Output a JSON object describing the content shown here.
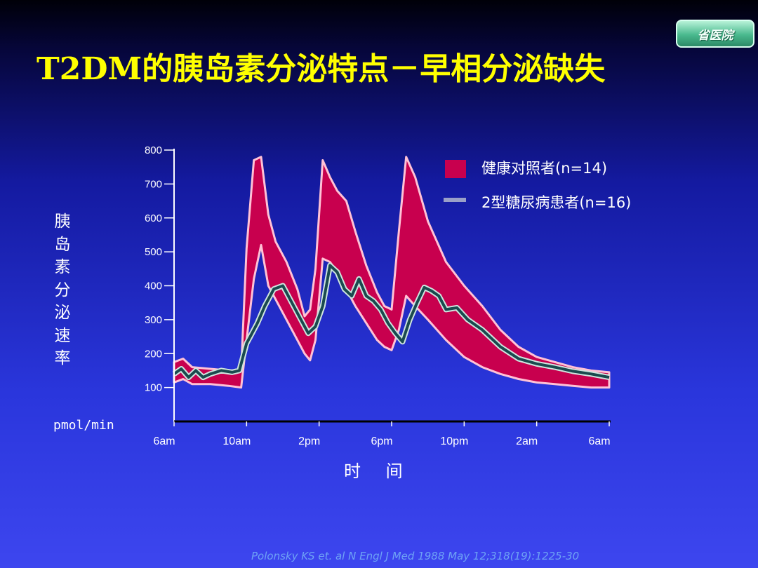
{
  "badge": "省医院",
  "title": "T2DM的胰岛素分泌特点－早相分泌缺失",
  "citation": "Polonsky KS et. al N Engl J Med 1988 May 12;318(19):1225-30",
  "colors": {
    "healthy": "#c8004e",
    "healthy_edge": "#ffc2d6",
    "diabetic": "#1a4a4e",
    "diabetic_halo": "#cfe5df",
    "title": "#ffff00"
  },
  "chart_data": {
    "type": "area",
    "ylabel": "胰岛素分泌速率",
    "yunit": "pmol/min",
    "xlabel": "时 间",
    "ylim": [
      0,
      800
    ],
    "yticks": [
      100,
      200,
      300,
      400,
      500,
      600,
      700,
      800
    ],
    "xlim": [
      6,
      30
    ],
    "xticks": [
      "6am",
      "10am",
      "2pm",
      "6pm",
      "10pm",
      "2am",
      "6am"
    ],
    "legend_position": "top-right",
    "series": [
      {
        "name": "健康对照者(n=14)",
        "style": "band",
        "x": [
          6.0,
          6.5,
          7.0,
          8.0,
          9.0,
          9.7,
          10.0,
          10.4,
          10.8,
          11.2,
          11.6,
          12.2,
          12.8,
          13.2,
          13.5,
          13.8,
          14.2,
          14.6,
          15.0,
          15.5,
          16.0,
          16.6,
          17.2,
          17.6,
          18.0,
          18.4,
          18.8,
          19.3,
          20.0,
          21.0,
          22.0,
          23.0,
          24.0,
          25.0,
          26.0,
          27.0,
          28.0,
          29.0,
          30.0
        ],
        "upper": [
          175,
          185,
          160,
          155,
          150,
          150,
          510,
          770,
          780,
          610,
          530,
          470,
          390,
          310,
          330,
          450,
          770,
          720,
          680,
          650,
          560,
          460,
          380,
          340,
          330,
          560,
          780,
          720,
          590,
          470,
          400,
          340,
          270,
          220,
          190,
          175,
          160,
          150,
          145
        ],
        "lower": [
          115,
          125,
          110,
          110,
          105,
          100,
          240,
          420,
          520,
          400,
          360,
          300,
          240,
          200,
          180,
          240,
          480,
          470,
          440,
          390,
          340,
          290,
          240,
          220,
          210,
          270,
          370,
          340,
          300,
          240,
          190,
          160,
          140,
          125,
          115,
          110,
          105,
          100,
          100
        ]
      },
      {
        "name": "2型糖尿病患者(n=16)",
        "style": "line",
        "x": [
          6.0,
          6.4,
          6.8,
          7.2,
          7.6,
          8.0,
          8.6,
          9.2,
          9.6,
          10.0,
          10.2,
          10.6,
          11.0,
          11.5,
          12.0,
          12.5,
          13.0,
          13.4,
          13.8,
          14.2,
          14.6,
          15.0,
          15.4,
          15.8,
          16.2,
          16.6,
          17.0,
          17.4,
          17.8,
          18.2,
          18.6,
          19.0,
          19.4,
          19.8,
          20.2,
          20.6,
          21.0,
          21.6,
          22.2,
          23.0,
          24.0,
          25.0,
          26.0,
          27.0,
          28.0,
          29.0,
          30.0
        ],
        "y": [
          140,
          155,
          130,
          150,
          130,
          140,
          150,
          145,
          150,
          230,
          250,
          290,
          340,
          390,
          400,
          350,
          300,
          260,
          280,
          340,
          460,
          440,
          390,
          370,
          420,
          370,
          355,
          330,
          290,
          260,
          235,
          300,
          350,
          395,
          385,
          370,
          330,
          335,
          300,
          270,
          220,
          185,
          170,
          160,
          148,
          140,
          130
        ]
      }
    ]
  }
}
